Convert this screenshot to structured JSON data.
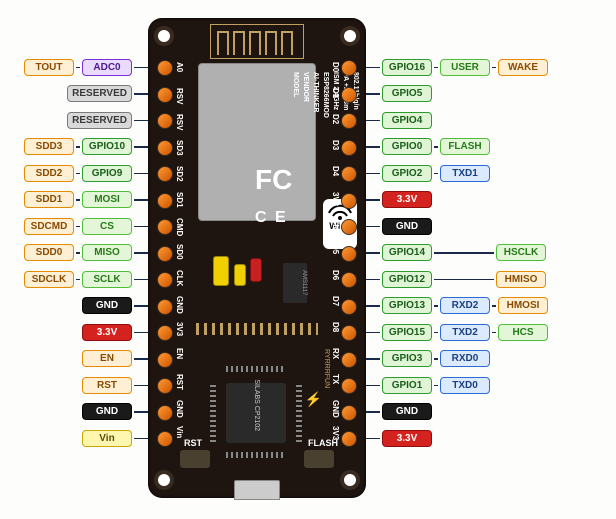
{
  "board": {
    "module": "ESP8266MOD",
    "vendor": "VENDOR",
    "thinker": "AI-THINKER",
    "ism": "ISM 2.4GHz",
    "pa": "PA +25dBm",
    "std": "802.11b/g/n",
    "model_word": "MODEL",
    "fc": "FC",
    "ce": "C E",
    "wifi": "Wi Fi",
    "usb_chip": "SILABS\nCP2102",
    "regulator": "AMS1117",
    "btn_rst": "RST",
    "btn_flash": "FLASH",
    "silk_left": [
      "A0",
      "RSV",
      "RSV",
      "SD3",
      "SD2",
      "SD1",
      "CMD",
      "SD0",
      "CLK",
      "GND",
      "3V3",
      "EN",
      "RST",
      "GND",
      "Vin"
    ],
    "silk_right": [
      "D0",
      "D1",
      "D2",
      "D3",
      "D4",
      "3V3",
      "GND",
      "D5",
      "D6",
      "D7",
      "D8",
      "RX",
      "TX",
      "GND",
      "3V3"
    ]
  },
  "colors": {
    "orange": {
      "bg": "#fff0d5",
      "border": "#e68a00",
      "text": "#8a4b00"
    },
    "purple": {
      "bg": "#eadafc",
      "border": "#7b2fd6",
      "text": "#4a1b8a"
    },
    "grey": {
      "bg": "#d9d9d9",
      "border": "#7a7a7a",
      "text": "#3a3a3a"
    },
    "green": {
      "bg": "#dff5d6",
      "border": "#2e9b2e",
      "text": "#1a5e1a"
    },
    "greenlt": {
      "bg": "#e3f7d8",
      "border": "#4fbf3a",
      "text": "#267a18"
    },
    "blue": {
      "bg": "#dbeaff",
      "border": "#2a6bd4",
      "text": "#1a3f80"
    },
    "red": {
      "bg": "#d4221f",
      "border": "#8f0e0c",
      "text": "#ffffff"
    },
    "black": {
      "bg": "#1a1a1a",
      "border": "#000000",
      "text": "#ffffff"
    },
    "yellow": {
      "bg": "#fff7b0",
      "border": "#caa600",
      "text": "#5a4a00"
    }
  },
  "left_pins": [
    {
      "cols": [
        {
          "t": "TOUT",
          "c": "orange"
        },
        {
          "t": "ADC0",
          "c": "purple"
        }
      ]
    },
    {
      "cols": [
        null,
        {
          "t": "RESERVED",
          "c": "grey"
        }
      ]
    },
    {
      "cols": [
        null,
        {
          "t": "RESERVED",
          "c": "grey"
        }
      ]
    },
    {
      "cols": [
        {
          "t": "SDD3",
          "c": "orange"
        },
        {
          "t": "GPIO10",
          "c": "green"
        }
      ]
    },
    {
      "cols": [
        {
          "t": "SDD2",
          "c": "orange"
        },
        {
          "t": "GPIO9",
          "c": "green"
        }
      ]
    },
    {
      "cols": [
        {
          "t": "SDD1",
          "c": "orange"
        },
        {
          "t": "MOSI",
          "c": "greenlt"
        }
      ]
    },
    {
      "cols": [
        {
          "t": "SDCMD",
          "c": "orange"
        },
        {
          "t": "CS",
          "c": "greenlt"
        }
      ]
    },
    {
      "cols": [
        {
          "t": "SDD0",
          "c": "orange"
        },
        {
          "t": "MISO",
          "c": "greenlt"
        }
      ]
    },
    {
      "cols": [
        {
          "t": "SDCLK",
          "c": "orange"
        },
        {
          "t": "SCLK",
          "c": "greenlt"
        }
      ]
    },
    {
      "cols": [
        null,
        {
          "t": "GND",
          "c": "black"
        }
      ]
    },
    {
      "cols": [
        null,
        {
          "t": "3.3V",
          "c": "red"
        }
      ]
    },
    {
      "cols": [
        null,
        {
          "t": "EN",
          "c": "orange"
        }
      ]
    },
    {
      "cols": [
        null,
        {
          "t": "RST",
          "c": "orange"
        }
      ]
    },
    {
      "cols": [
        null,
        {
          "t": "GND",
          "c": "black"
        }
      ]
    },
    {
      "cols": [
        null,
        {
          "t": "Vin",
          "c": "yellow"
        }
      ]
    }
  ],
  "right_pins": [
    {
      "cols": [
        {
          "t": "GPIO16",
          "c": "green"
        },
        {
          "t": "USER",
          "c": "greenlt"
        },
        {
          "t": "WAKE",
          "c": "orange"
        }
      ]
    },
    {
      "cols": [
        {
          "t": "GPIO5",
          "c": "green"
        }
      ]
    },
    {
      "cols": [
        {
          "t": "GPIO4",
          "c": "green"
        }
      ]
    },
    {
      "cols": [
        {
          "t": "GPIO0",
          "c": "green"
        },
        {
          "t": "FLASH",
          "c": "greenlt"
        }
      ]
    },
    {
      "cols": [
        {
          "t": "GPIO2",
          "c": "green"
        },
        {
          "t": "TXD1",
          "c": "blue"
        }
      ]
    },
    {
      "cols": [
        {
          "t": "3.3V",
          "c": "red"
        }
      ]
    },
    {
      "cols": [
        {
          "t": "GND",
          "c": "black"
        }
      ]
    },
    {
      "cols": [
        {
          "t": "GPIO14",
          "c": "green"
        },
        null,
        {
          "t": "HSCLK",
          "c": "greenlt"
        }
      ]
    },
    {
      "cols": [
        {
          "t": "GPIO12",
          "c": "green"
        },
        null,
        {
          "t": "HMISO",
          "c": "orange"
        }
      ]
    },
    {
      "cols": [
        {
          "t": "GPIO13",
          "c": "green"
        },
        {
          "t": "RXD2",
          "c": "blue"
        },
        {
          "t": "HMOSI",
          "c": "orange"
        }
      ]
    },
    {
      "cols": [
        {
          "t": "GPIO15",
          "c": "green"
        },
        {
          "t": "TXD2",
          "c": "blue"
        },
        {
          "t": "HCS",
          "c": "greenlt"
        }
      ]
    },
    {
      "cols": [
        {
          "t": "GPIO3",
          "c": "green"
        },
        {
          "t": "RXD0",
          "c": "blue"
        }
      ]
    },
    {
      "cols": [
        {
          "t": "GPIO1",
          "c": "green"
        },
        {
          "t": "TXD0",
          "c": "blue"
        }
      ]
    },
    {
      "cols": [
        {
          "t": "GND",
          "c": "black"
        }
      ]
    },
    {
      "cols": [
        {
          "t": "3.3V",
          "c": "red"
        }
      ]
    }
  ]
}
